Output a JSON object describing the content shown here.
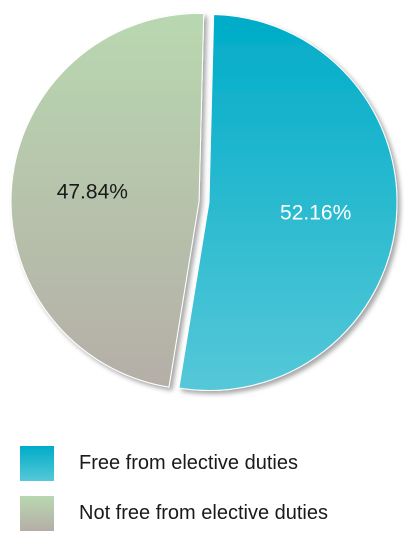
{
  "chart_data": {
    "type": "pie",
    "slices": [
      {
        "name": "Free from elective duties",
        "value": 52.16,
        "label": "52.16%",
        "color_top": "#00acc8",
        "color_bottom": "#55c8d8",
        "label_color": "#ffffff"
      },
      {
        "name": "Not free from elective duties",
        "value": 47.84,
        "label": "47.84%",
        "color_top": "#b8d8b0",
        "color_bottom": "#b5aea7",
        "label_color": "#1a1a1a"
      }
    ],
    "legend_position": "bottom",
    "exploded": true
  }
}
